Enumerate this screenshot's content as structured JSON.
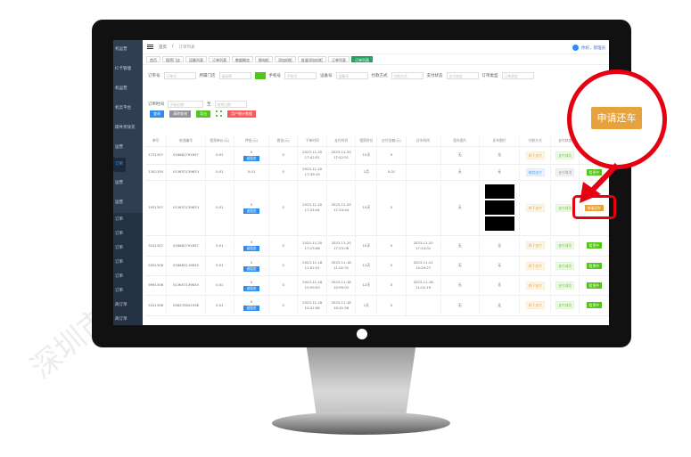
{
  "watermark": "深圳市智信息技术有限公司",
  "sidebar": {
    "items": [
      {
        "label": "机运营"
      },
      {
        "label": "IC卡管理"
      },
      {
        "label": "机运营"
      },
      {
        "label": "机云平台"
      },
      {
        "label": "碳共享快充"
      },
      {
        "label": "运营"
      },
      {
        "label": "订单",
        "active": true
      },
      {
        "label": "运营"
      },
      {
        "label": "运营"
      },
      {
        "label": "订单"
      },
      {
        "label": "订单"
      },
      {
        "label": "订单"
      },
      {
        "label": "订单"
      },
      {
        "label": "订单"
      },
      {
        "label": "订单"
      },
      {
        "label": "商订单"
      },
      {
        "label": "商订单"
      }
    ]
  },
  "header": {
    "breadcrumb": [
      "首页",
      "订单列表"
    ],
    "user": "你好，管理员"
  },
  "tabs": [
    {
      "label": "首页"
    },
    {
      "label": "租赁门店"
    },
    {
      "label": "设备列表"
    },
    {
      "label": "订单列表"
    },
    {
      "label": "数据概览"
    },
    {
      "label": "换电柜"
    },
    {
      "label": "添加机柜"
    },
    {
      "label": "批量添加机柜"
    },
    {
      "label": "订单列表"
    },
    {
      "label": "订单列表",
      "active": true
    }
  ],
  "filters": [
    {
      "label": "订单号",
      "placeholder": "订单号"
    },
    {
      "label": "所属门店",
      "placeholder": "请选择"
    },
    {
      "label": "手机号",
      "placeholder": "手机号"
    },
    {
      "label": "设备号",
      "placeholder": "设备号"
    },
    {
      "label": "付款方式",
      "placeholder": "付款方式"
    },
    {
      "label": "支付状态",
      "placeholder": "支付状态"
    },
    {
      "label": "订单类型",
      "placeholder": "订单类型"
    },
    {
      "label": "订单时间",
      "placeholder": "开始日期",
      "placeholder2": "结束日期",
      "sep": "至"
    }
  ],
  "buttons": {
    "search": "查询",
    "reset": "清除查询",
    "export": "导出",
    "custom": "用户统计数据"
  },
  "colors": {
    "primary": "#2d8cf0",
    "success": "#52c41a",
    "warning": "#e6a23c",
    "danger": "#f5595b",
    "highlight": "#e60012",
    "sidebar": "#2f3e52"
  },
  "table": {
    "columns": [
      "单号",
      "电池编号",
      "租赁单价(元)",
      "押金(元)",
      "佣金(元)",
      "下单时间",
      "支付时间",
      "租赁时长",
      "应付金额(元)",
      "还车时间",
      "租车图片",
      "还车图片",
      "付款方式",
      "支付状态",
      "操作"
    ],
    "rows": [
      {
        "id": "1731307",
        "battery": "016681791657",
        "price": "0.01",
        "deposit": "0",
        "refund": "退租金",
        "commission": "0",
        "order_time": "2023-11-20 17:42:51",
        "pay_time": "2023-11-20 17:42:51",
        "duration": "10天",
        "amount": "0",
        "return_time": "",
        "rent_img": "无",
        "return_img": "无",
        "pay_method": "线下支付",
        "pay_status": "支付成功",
        "action": "租赁中"
      },
      {
        "id": "1302155",
        "battery": "013657139633",
        "price": "0.01",
        "deposit": "0.01",
        "refund": "",
        "commission": "0",
        "order_time": "2023-11-20 17:39:19",
        "pay_time": "",
        "duration": "1月",
        "amount": "0.01",
        "return_time": "",
        "rent_img": "无",
        "return_img": "无",
        "pay_method": "微信支付",
        "pay_status": "支付取消",
        "action": "租赁中"
      },
      {
        "id": "1931307",
        "battery": "013657139633",
        "price": "0.01",
        "deposit": "0",
        "refund": "退租金",
        "commission": "0",
        "order_time": "2023-11-20 17:24:44",
        "pay_time": "2023-11-20 17:24:44",
        "duration": "10天",
        "amount": "0",
        "return_time": "",
        "rent_img": "无",
        "return_img": "images",
        "pay_method": "线下支付",
        "pay_status": "支付成功",
        "action": "申请还车"
      },
      {
        "id": "3241307",
        "battery": "016681791657",
        "price": "0.01",
        "deposit": "0",
        "refund": "退租金",
        "commission": "0",
        "order_time": "2023-11-20 17:23:06",
        "pay_time": "2023-11-20 17:23:06",
        "duration": "10天",
        "amount": "0",
        "return_time": "2023-11-20 17:24:01",
        "rent_img": "无",
        "return_img": "无",
        "pay_method": "线下支付",
        "pay_status": "支付成功",
        "action": "租赁中"
      },
      {
        "id": "5501306",
        "battery": "016683119833",
        "price": "0.01",
        "deposit": "0",
        "refund": "退租金",
        "commission": "0",
        "order_time": "2023-11-18 11:02:31",
        "pay_time": "2023-11-18 11:02:31",
        "duration": "12天",
        "amount": "0",
        "return_time": "2023-11-21 14:29:27",
        "rent_img": "无",
        "return_img": "无",
        "pay_method": "线下支付",
        "pay_status": "支付成功",
        "action": "租赁中"
      },
      {
        "id": "9991306",
        "battery": "013657139633",
        "price": "0.01",
        "deposit": "0",
        "refund": "退租金",
        "commission": "0",
        "order_time": "2023-11-18 10:59:03",
        "pay_time": "2023-11-18 10:59:03",
        "duration": "12天",
        "amount": "0",
        "return_time": "2023-11-18 11:01:19",
        "rent_img": "无",
        "return_img": "无",
        "pay_method": "线下支付",
        "pay_status": "支付成功",
        "action": "租赁中"
      },
      {
        "id": "5241306",
        "battery": "058233601936",
        "price": "0.01",
        "deposit": "0",
        "refund": "退租金",
        "commission": "0",
        "order_time": "2023-11-18 10:41:58",
        "pay_time": "2023-11-18 10:41:58",
        "duration": "1天",
        "amount": "0",
        "return_time": "",
        "rent_img": "无",
        "return_img": "无",
        "pay_method": "线下支付",
        "pay_status": "支付成功",
        "action": "租赁中"
      }
    ]
  },
  "callout": {
    "label": "申请还车"
  }
}
